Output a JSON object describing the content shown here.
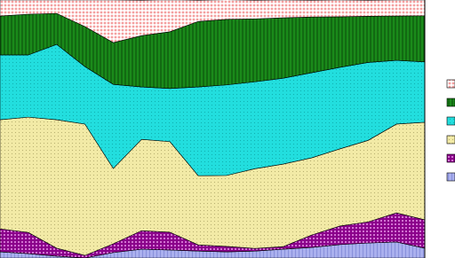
{
  "chart_data": {
    "type": "stacked_area",
    "categories": [
      null,
      null,
      null,
      null,
      null,
      null,
      null,
      null,
      null,
      null,
      null,
      null,
      null,
      null,
      null,
      null
    ],
    "ylim": [
      0,
      100
    ],
    "series": [
      {
        "color": "#aab0ee",
        "values": [
          2.4,
          1.7,
          0.7,
          0,
          2.1,
          3.4,
          3.1,
          2.7,
          2.4,
          2.7,
          3.4,
          4.1,
          5.2,
          5.8,
          6.2,
          3.8
        ]
      },
      {
        "color": "#8b008b",
        "values": [
          8.9,
          8.2,
          3.1,
          1.0,
          3.4,
          7.2,
          6.9,
          2.4,
          2.1,
          1.0,
          1.0,
          4.8,
          7.2,
          8.2,
          11.3,
          11.0
        ]
      },
      {
        "color": "#f2eaa6",
        "values": [
          42.3,
          44.7,
          49.8,
          50.9,
          29.2,
          35.4,
          35.1,
          26.8,
          27.5,
          30.9,
          32.0,
          29.9,
          29.9,
          31.6,
          34.4,
          37.8
        ]
      },
      {
        "color": "#22dede",
        "values": [
          25.1,
          24.1,
          29.2,
          22.3,
          32.6,
          20.3,
          20.6,
          34.4,
          35.1,
          33.7,
          33.3,
          33.0,
          31.6,
          30.2,
          24.7,
          23.4
        ]
      },
      {
        "color": "#1a8a1a",
        "values": [
          15.1,
          15.8,
          12.0,
          15.5,
          16.2,
          19.9,
          22.0,
          25.4,
          25.4,
          24.4,
          23.4,
          21.6,
          19.6,
          17.9,
          17.2,
          17.9
        ]
      },
      {
        "color": "#f4a0a0",
        "values": [
          6.2,
          5.5,
          5.2,
          10.3,
          16.5,
          13.7,
          12.4,
          8.2,
          7.6,
          7.2,
          6.9,
          6.5,
          6.5,
          6.2,
          6.2,
          6.2
        ]
      }
    ]
  }
}
